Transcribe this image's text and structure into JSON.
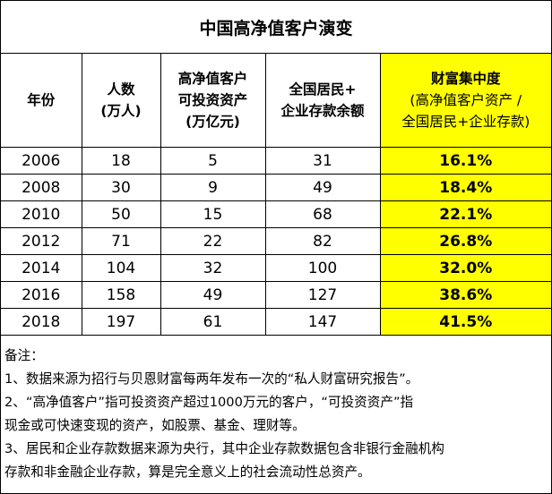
{
  "title": "中国高净值客户演变",
  "headers": {
    "year": "年份",
    "people": [
      "人数",
      "(万人)"
    ],
    "assets": [
      "高净值客户",
      "可投资资产",
      "(万亿元)"
    ],
    "deposits": [
      "全国居民+",
      "企业存款余额"
    ],
    "concentration": {
      "title": "财富集中度",
      "sub": [
        "(高净值客户资产 /",
        "全国居民+企业存款)"
      ]
    }
  },
  "rows": [
    {
      "year": "2006",
      "people": "18",
      "assets": "5",
      "deposits": "31",
      "concentration": "16.1%"
    },
    {
      "year": "2008",
      "people": "30",
      "assets": "9",
      "deposits": "49",
      "concentration": "18.4%"
    },
    {
      "year": "2010",
      "people": "50",
      "assets": "15",
      "deposits": "68",
      "concentration": "22.1%"
    },
    {
      "year": "2012",
      "people": "71",
      "assets": "22",
      "deposits": "82",
      "concentration": "26.8%"
    },
    {
      "year": "2014",
      "people": "104",
      "assets": "32",
      "deposits": "100",
      "concentration": "32.0%"
    },
    {
      "year": "2016",
      "people": "158",
      "assets": "49",
      "deposits": "127",
      "concentration": "38.6%"
    },
    {
      "year": "2018",
      "people": "197",
      "assets": "61",
      "deposits": "147",
      "concentration": "41.5%"
    }
  ],
  "notes": [
    "备注：",
    "1、数据来源为招行与贝恩财富每两年发布一次的“私人财富研究报告”。",
    "2、“高净值客户”指可投资资产超过1000万元的客户，“可投资资产”指",
    "现金或可快速变现的资产，如股票、基金、理财等。",
    "3、居民和企业存款数据来源为央行，其中企业存款数据包含非银行金融机构",
    "存款和非金融企业存款，算是完全意义上的社会流动性总资产。"
  ],
  "colors": {
    "highlight": "#ffff00",
    "border": "#000000"
  }
}
